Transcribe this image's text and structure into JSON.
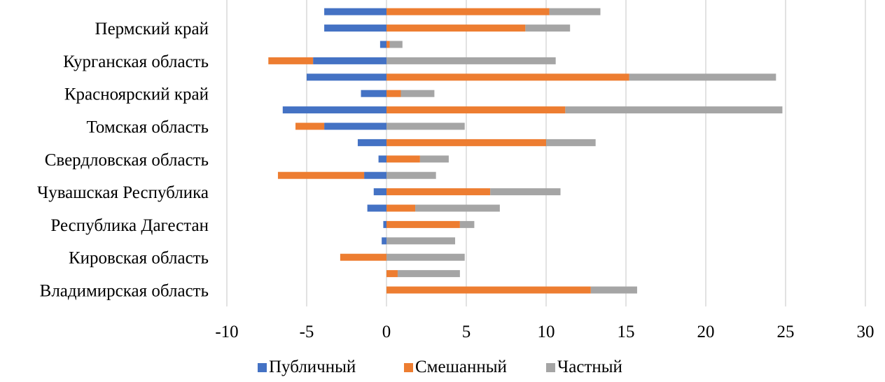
{
  "chart_data": {
    "type": "bar",
    "orientation": "horizontal",
    "stacking": "diverging-stacked",
    "xlim": [
      -10,
      30
    ],
    "xticks": [
      -10,
      -5,
      0,
      5,
      10,
      15,
      20,
      25,
      30
    ],
    "xtick_labels": [
      "-10",
      "-5",
      "0",
      "5",
      "10",
      "15",
      "20",
      "25",
      "30"
    ],
    "grid": "vertical",
    "legend_position": "bottom",
    "category_labels": [
      {
        "row": 1,
        "label": "Пермский край"
      },
      {
        "row": 3,
        "label": "Курганская область"
      },
      {
        "row": 5,
        "label": "Красноярский край"
      },
      {
        "row": 7,
        "label": "Томская область"
      },
      {
        "row": 9,
        "label": "Свердловская область"
      },
      {
        "row": 11,
        "label": "Чувашская Республика"
      },
      {
        "row": 13,
        "label": "Республика Дагестан"
      },
      {
        "row": 15,
        "label": "Кировская область"
      },
      {
        "row": 17,
        "label": "Владимирская область"
      }
    ],
    "series": [
      {
        "name": "Публичный",
        "color": "#4472C4",
        "values": [
          -3.9,
          -3.9,
          -0.4,
          -4.6,
          -5.0,
          -1.6,
          -6.5,
          -3.9,
          -1.8,
          -0.5,
          -1.4,
          -0.8,
          -1.2,
          -0.2,
          -0.3,
          0,
          0,
          0
        ]
      },
      {
        "name": "Смешанный",
        "color": "#ED7D31",
        "values": [
          10.2,
          8.7,
          0.2,
          -2.8,
          15.2,
          0.9,
          11.2,
          -1.8,
          10.0,
          2.1,
          -5.4,
          6.5,
          1.8,
          4.6,
          0,
          -2.9,
          0.7,
          12.8
        ]
      },
      {
        "name": "Частный",
        "color": "#A5A5A5",
        "values": [
          3.2,
          2.8,
          0.8,
          10.6,
          9.2,
          2.1,
          13.6,
          4.9,
          3.1,
          1.8,
          3.1,
          4.4,
          5.3,
          0.9,
          4.3,
          4.9,
          3.9,
          2.9
        ]
      }
    ]
  },
  "legend": {
    "items": [
      {
        "label": "Публичный",
        "color": "#4472C4"
      },
      {
        "label": "Смешанный",
        "color": "#ED7D31"
      },
      {
        "label": "Частный",
        "color": "#A5A5A5"
      }
    ]
  }
}
